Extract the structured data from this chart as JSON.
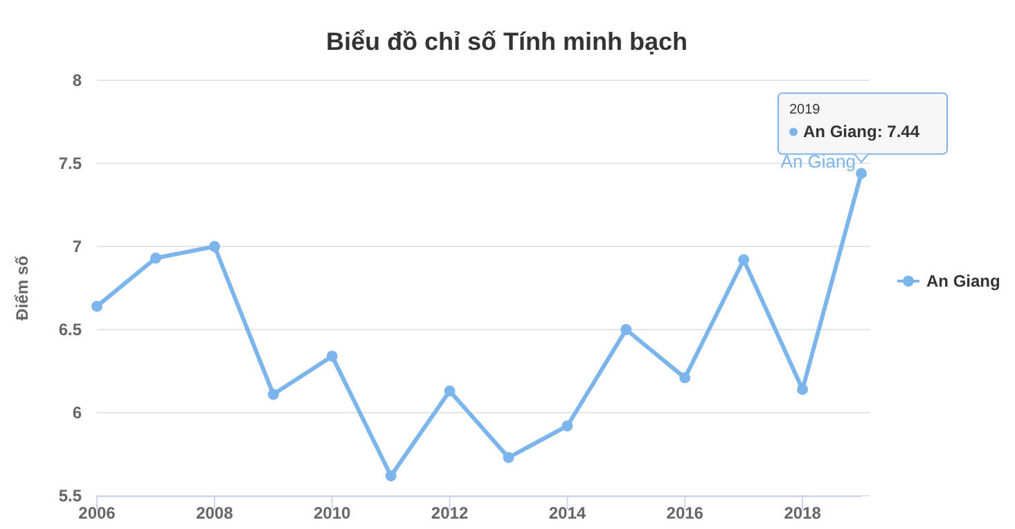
{
  "chart_data": {
    "type": "line",
    "title": "Biểu đồ chỉ số Tính minh bạch",
    "ylabel": "Điểm số",
    "x": [
      2006,
      2007,
      2008,
      2009,
      2010,
      2011,
      2012,
      2013,
      2014,
      2015,
      2016,
      2017,
      2018,
      2019
    ],
    "series": [
      {
        "name": "An Giang",
        "color": "#7cb5ec",
        "values": [
          6.64,
          6.93,
          7.0,
          6.11,
          6.34,
          5.62,
          6.13,
          5.73,
          5.92,
          6.5,
          6.21,
          6.92,
          6.14,
          7.44
        ]
      }
    ],
    "xlim": [
      2006,
      2019
    ],
    "xticks": [
      2006,
      2008,
      2010,
      2012,
      2014,
      2016,
      2018
    ],
    "ylim": [
      5.5,
      8
    ],
    "yticks": [
      5.5,
      6,
      6.5,
      7,
      7.5,
      8
    ],
    "grid": "y",
    "legend": "right",
    "marker": "circle",
    "line_style": "solid",
    "annotations": [
      "2019",
      "An Giang: 7.44"
    ]
  }
}
